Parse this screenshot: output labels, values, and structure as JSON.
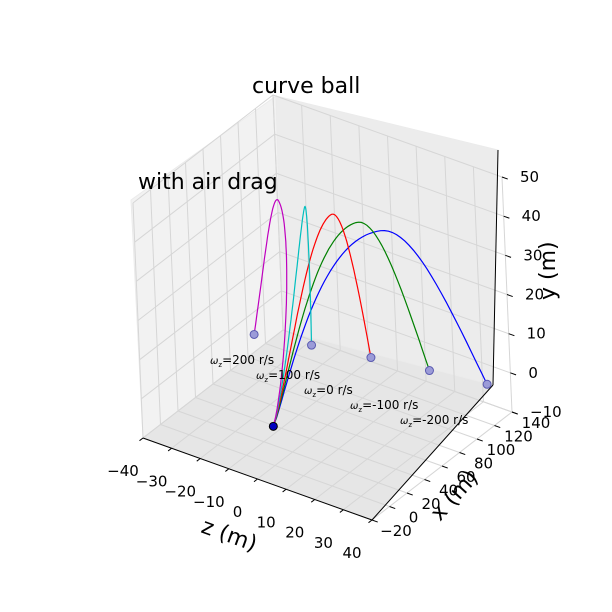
{
  "chart_data": {
    "type": "line3d",
    "title": "curve ball",
    "subtitle": "with air drag",
    "xlabel": "z (m)",
    "ylabel": "x (m)",
    "zlabel": "y (m)",
    "z_ticks": [
      "−40",
      "−30",
      "−20",
      "−10",
      "0",
      "10",
      "20",
      "30",
      "40"
    ],
    "x_ticks": [
      "−20",
      "0",
      "20",
      "40",
      "60",
      "80",
      "100",
      "120",
      "140"
    ],
    "y_ticks": [
      "−10",
      "0",
      "10",
      "20",
      "30",
      "40",
      "50"
    ],
    "zlim": [
      -40,
      40
    ],
    "xlim": [
      -20,
      140
    ],
    "ylim": [
      -10,
      50
    ],
    "grid": true,
    "launch_point": {
      "z": 0,
      "x": 0,
      "y": 0
    },
    "series": [
      {
        "color": "#0000ff",
        "label": "ωz=-200 r/s",
        "label_text": "=-200 r/s",
        "landing": {
          "z": 38,
          "x": 120,
          "y": 0
        },
        "peak_y": 40
      },
      {
        "color": "#008000",
        "label": "ωz=-100 r/s",
        "label_text": "=-100 r/s",
        "landing": {
          "z": 20,
          "x": 113,
          "y": 0
        },
        "peak_y": 41
      },
      {
        "color": "#ff0000",
        "label": "ωz=0 r/s",
        "label_text": "=0 r/s",
        "landing": {
          "z": 2,
          "x": 105,
          "y": 0
        },
        "peak_y": 42
      },
      {
        "color": "#00bfbf",
        "label": "ωz=100 r/s",
        "label_text": "=100 r/s",
        "landing": {
          "z": -16,
          "x": 96,
          "y": 0
        },
        "peak_y": 43
      },
      {
        "color": "#bf00bf",
        "label": "ωz=200 r/s",
        "label_text": "=200 r/s",
        "landing": {
          "z": -33,
          "x": 86,
          "y": 0
        },
        "peak_y": 44
      }
    ],
    "omega_symbol": "ω",
    "omega_sub": "z"
  }
}
